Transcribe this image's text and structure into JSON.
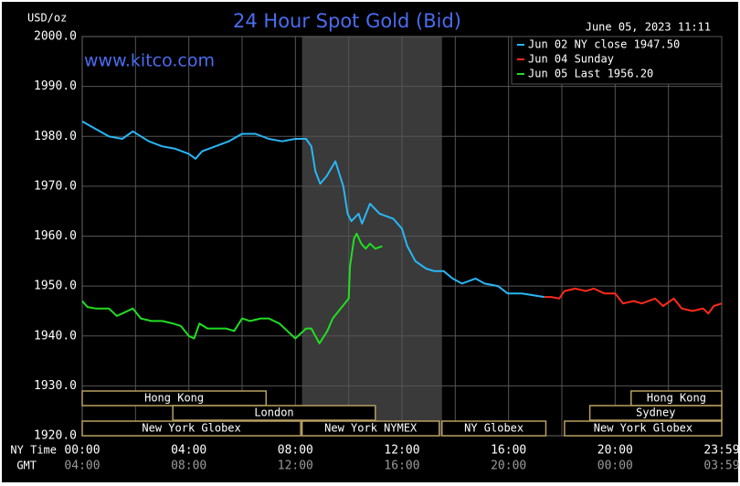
{
  "chart_data": {
    "type": "line",
    "title": "24 Hour Spot Gold (Bid)",
    "site": "www.kitco.com",
    "y_unit": "USD/oz",
    "timestamp": "June 05, 2023 11:11",
    "x_label": "NY Time",
    "x2_label": "GMT",
    "xlim": [
      0,
      24
    ],
    "xticks": [
      {
        "value": 0,
        "label": "00:00"
      },
      {
        "value": 4,
        "label": "04:00"
      },
      {
        "value": 8,
        "label": "08:00"
      },
      {
        "value": 12,
        "label": "12:00"
      },
      {
        "value": 16,
        "label": "16:00"
      },
      {
        "value": 20,
        "label": "20:00"
      },
      {
        "value": 24,
        "label": "23:59"
      }
    ],
    "x2ticks": [
      {
        "value": 0,
        "label": "04:00"
      },
      {
        "value": 4,
        "label": "08:00"
      },
      {
        "value": 8,
        "label": "12:00"
      },
      {
        "value": 12,
        "label": "16:00"
      },
      {
        "value": 16,
        "label": "20:00"
      },
      {
        "value": 20,
        "label": "00:00"
      },
      {
        "value": 24,
        "label": "03:59"
      }
    ],
    "minor_xticks": [
      2,
      6,
      10,
      14,
      18,
      22
    ],
    "ylim": [
      1920,
      2000
    ],
    "yticks": [
      {
        "value": 1920,
        "label": "1920.0"
      },
      {
        "value": 1930,
        "label": "1930.0"
      },
      {
        "value": 1940,
        "label": "1940.0"
      },
      {
        "value": 1950,
        "label": "1950.0"
      },
      {
        "value": 1960,
        "label": "1960.0"
      },
      {
        "value": 1970,
        "label": "1970.0"
      },
      {
        "value": 1980,
        "label": "1980.0"
      },
      {
        "value": 1990,
        "label": "1990.0"
      },
      {
        "value": 2000,
        "label": "2000.0"
      }
    ],
    "grid": true,
    "legend": "top-right",
    "shaded_x": [
      8.25,
      13.5
    ],
    "series": [
      {
        "name": "Jun 02 NY close 1947.50",
        "color": "#29b6f6",
        "x": [
          0,
          0.5,
          1,
          1.5,
          1.9,
          2.5,
          3,
          3.5,
          4,
          4.25,
          4.5,
          5,
          5.5,
          6,
          6.5,
          7,
          7.5,
          8,
          8.4,
          8.6,
          8.75,
          8.93,
          9.17,
          9.5,
          9.8,
          9.96,
          10.1,
          10.37,
          10.5,
          10.8,
          11.16,
          11.67,
          12.0,
          12.2,
          12.5,
          12.9,
          13.2,
          13.56,
          13.9,
          14.25,
          14.76,
          15.1,
          15.6,
          15.97,
          16.5,
          17.34
        ],
        "values": [
          1983,
          1981.5,
          1980,
          1979.5,
          1981,
          1979,
          1978,
          1977.5,
          1976.5,
          1975.5,
          1977,
          1978,
          1979,
          1980.5,
          1980.5,
          1979.5,
          1979,
          1979.5,
          1979.5,
          1978,
          1973,
          1970.5,
          1972,
          1975,
          1970,
          1964.5,
          1963,
          1964.5,
          1962.5,
          1966.5,
          1964.5,
          1963.5,
          1961.5,
          1958,
          1955,
          1953.5,
          1953,
          1953,
          1951.5,
          1950.5,
          1951.5,
          1950.5,
          1950,
          1948.5,
          1948.5,
          1947.8
        ]
      },
      {
        "name": "Jun 04 Sunday",
        "color": "#ff2a1a",
        "x": [
          17.34,
          17.6,
          17.9,
          18.1,
          18.5,
          18.9,
          19.2,
          19.6,
          20.0,
          20.3,
          20.7,
          21.0,
          21.5,
          21.8,
          22.2,
          22.5,
          22.9,
          23.3,
          23.5,
          23.7,
          24
        ],
        "values": [
          1947.8,
          1947.8,
          1947.5,
          1949,
          1949.5,
          1949,
          1949.5,
          1948.5,
          1948.5,
          1946.5,
          1947,
          1946.5,
          1947.5,
          1946,
          1947.5,
          1945.5,
          1945,
          1945.5,
          1944.5,
          1946,
          1946.5
        ]
      },
      {
        "name": "Jun 05 Last 1956.20",
        "color": "#22dd22",
        "x": [
          0,
          0.2,
          0.5,
          1.0,
          1.3,
          1.5,
          1.9,
          2.2,
          2.6,
          3.0,
          3.4,
          3.7,
          4.0,
          4.2,
          4.4,
          4.7,
          5.0,
          5.4,
          5.7,
          6.0,
          6.3,
          6.7,
          7.0,
          7.4,
          7.7,
          8.0,
          8.4,
          8.6,
          8.9,
          9.2,
          9.4,
          9.7,
          10.0,
          10.05,
          10.2,
          10.3,
          10.47,
          10.64,
          10.8,
          11.0,
          11.26
        ],
        "values": [
          1947,
          1945.8,
          1945.5,
          1945.5,
          1944,
          1944.5,
          1945.5,
          1943.5,
          1943,
          1943,
          1942.5,
          1942,
          1940,
          1939.5,
          1942.5,
          1941.5,
          1941.5,
          1941.5,
          1941,
          1943.5,
          1943,
          1943.5,
          1943.5,
          1942.5,
          1941,
          1939.5,
          1941.5,
          1941.5,
          1938.5,
          1941,
          1943.5,
          1945.5,
          1947.5,
          1954,
          1959.5,
          1960.5,
          1958.5,
          1957.5,
          1958.5,
          1957.5,
          1958
        ]
      }
    ],
    "sessions": [
      {
        "label": "Hong Kong",
        "start": 0,
        "end": 6.9,
        "row": 1
      },
      {
        "label": "London",
        "start": 3.4,
        "end": 11.0,
        "row": 2
      },
      {
        "label": "New York Globex",
        "start": 0,
        "end": 8.2,
        "row": 3
      },
      {
        "label": "New York NYMEX",
        "start": 8.25,
        "end": 13.4,
        "row": 3
      },
      {
        "label": "NY Globex",
        "start": 13.5,
        "end": 17.4,
        "row": 3
      },
      {
        "label": "Hong Kong",
        "start": 20.6,
        "end": 24,
        "row": 1
      },
      {
        "label": "Sydney",
        "start": 19.05,
        "end": 24,
        "row": 2
      },
      {
        "label": "New York Globex",
        "start": 18.1,
        "end": 24,
        "row": 3
      }
    ]
  }
}
